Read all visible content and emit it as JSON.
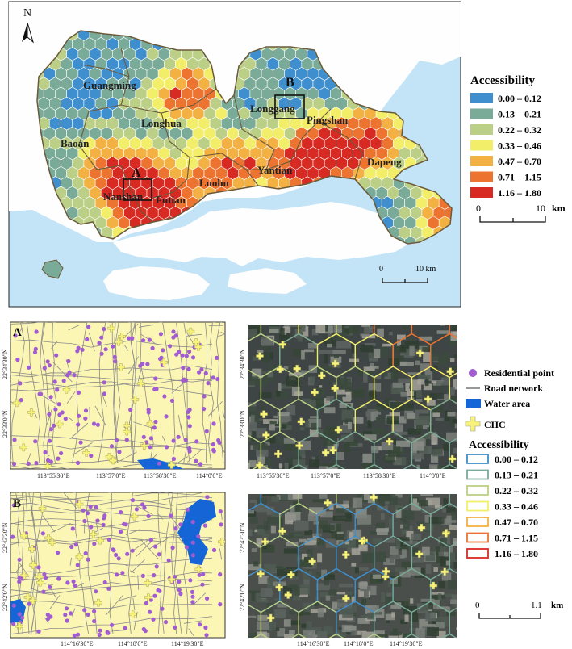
{
  "main_map": {
    "north": "N",
    "districts": [
      "Guangming",
      "Longhua",
      "Baoan",
      "Nanshan",
      "Futian",
      "Luohu",
      "Yantian",
      "Longgang",
      "Pingshan",
      "Dapeng"
    ],
    "inset_marks": [
      "A",
      "B"
    ],
    "scalebar": {
      "start": "0",
      "end": "10 km"
    },
    "legend": {
      "title": "Accessibility",
      "classes": [
        "0.00 – 0.12",
        "0.13 – 0.21",
        "0.22 – 0.32",
        "0.33 – 0.46",
        "0.47 – 0.70",
        "0.71 – 1.15",
        "1.16 – 1.80"
      ],
      "colors": [
        "#3f8fce",
        "#7aaa98",
        "#bccf86",
        "#f3ee6a",
        "#f3b043",
        "#ec7430",
        "#d72a22"
      ],
      "scalebar": {
        "start": "0",
        "end": "10",
        "unit": "km"
      }
    }
  },
  "panel_a": {
    "letter": "A",
    "x_ticks": [
      "113°55'30\"E",
      "113°57'0\"E",
      "113°58'30\"E",
      "114°0'0\"E"
    ],
    "y_ticks": [
      "22°34'30\"N",
      "22°33'0\"N"
    ]
  },
  "panel_b": {
    "letter": "B",
    "x_ticks": [
      "114°16'30\"E",
      "114°18'0\"E",
      "114°19'30\"E"
    ],
    "y_ticks": [
      "22°43'30\"N",
      "22°42'0\"N"
    ]
  },
  "detail_legend": {
    "items": [
      "Residential point",
      "Road network",
      "Water area",
      "CHC"
    ],
    "title": "Accessibility",
    "classes": [
      "0.00 – 0.12",
      "0.13 – 0.21",
      "0.22 – 0.32",
      "0.33 – 0.46",
      "0.47 – 0.70",
      "0.71 – 1.15",
      "1.16 – 1.80"
    ],
    "colors": [
      "#3f8fce",
      "#7aaa98",
      "#bccf86",
      "#f3ee6a",
      "#f3b043",
      "#ec7430",
      "#d72a22"
    ],
    "scalebar": {
      "start": "0",
      "end": "1.1",
      "unit": "km"
    }
  },
  "colors": {
    "sea": "#c3e4f6",
    "land": "#fefefe",
    "base": "#fcf6b4",
    "residential": "#a05cd0",
    "chc": "#f6f27a",
    "water": "#1565d6"
  }
}
